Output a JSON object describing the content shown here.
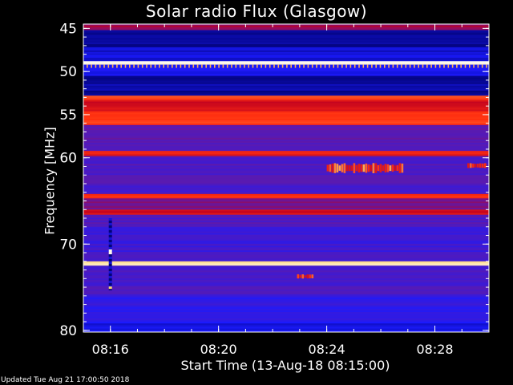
{
  "chart_data": {
    "type": "heatmap",
    "title": "Solar radio Flux (Glasgow)",
    "ylabel": "Frequency [MHz]",
    "xlabel": "Start Time (13-Aug-18 08:15:00)",
    "y_range_mhz": [
      44.5,
      80.2
    ],
    "y_ticks": [
      45,
      50,
      55,
      60,
      70,
      80
    ],
    "x_range_minutes": [
      15.0,
      30.0
    ],
    "x_ticks": [
      {
        "minute": 16,
        "label": "08:16"
      },
      {
        "minute": 20,
        "label": "08:20"
      },
      {
        "minute": 24,
        "label": "08:24"
      },
      {
        "minute": 28,
        "label": "08:28"
      }
    ],
    "colormap": [
      "#000066",
      "#1a1aff",
      "#5a1ab0",
      "#c00020",
      "#ff3010",
      "#ffd060",
      "#ffffff"
    ],
    "bands": [
      {
        "from": 44.5,
        "to": 45.2,
        "level": 0.45
      },
      {
        "from": 45.2,
        "to": 47.2,
        "level": 0.05
      },
      {
        "from": 47.2,
        "to": 48.8,
        "level": 0.12
      },
      {
        "from": 48.8,
        "to": 49.2,
        "level": 0.95
      },
      {
        "from": 49.2,
        "to": 50.5,
        "level": 0.15
      },
      {
        "from": 50.5,
        "to": 52.8,
        "level": 0.06
      },
      {
        "from": 52.8,
        "to": 53.3,
        "level": 0.7
      },
      {
        "from": 53.3,
        "to": 54.6,
        "level": 0.55
      },
      {
        "from": 54.6,
        "to": 56.2,
        "level": 0.68
      },
      {
        "from": 56.2,
        "to": 59.2,
        "level": 0.32
      },
      {
        "from": 59.2,
        "to": 59.8,
        "level": 0.6
      },
      {
        "from": 59.8,
        "to": 64.2,
        "level": 0.3
      },
      {
        "from": 64.2,
        "to": 64.7,
        "level": 0.65
      },
      {
        "from": 64.7,
        "to": 66.0,
        "level": 0.38
      },
      {
        "from": 66.0,
        "to": 66.6,
        "level": 0.55
      },
      {
        "from": 66.6,
        "to": 68.0,
        "level": 0.3
      },
      {
        "from": 68.0,
        "to": 72.0,
        "level": 0.26
      },
      {
        "from": 72.0,
        "to": 72.5,
        "level": 0.9
      },
      {
        "from": 72.5,
        "to": 76.0,
        "level": 0.28
      },
      {
        "from": 76.0,
        "to": 79.0,
        "level": 0.22
      },
      {
        "from": 79.0,
        "to": 80.2,
        "level": 0.15
      }
    ],
    "bursts": [
      {
        "t_start": 24.0,
        "t_end": 26.8,
        "f_low": 60.6,
        "f_high": 61.8,
        "level": 0.62
      },
      {
        "t_start": 29.2,
        "t_end": 29.9,
        "f_low": 60.6,
        "f_high": 61.2,
        "level": 0.55
      },
      {
        "t_start": 22.9,
        "t_end": 23.5,
        "f_low": 73.5,
        "f_high": 74.0,
        "level": 0.55
      }
    ],
    "spike_column": {
      "minute": 16.0,
      "f_low": 67.0,
      "f_high": 75.2
    },
    "grid": false
  },
  "footer": {
    "updated": "Updated Tue Aug 21 17:00:50 2018"
  }
}
